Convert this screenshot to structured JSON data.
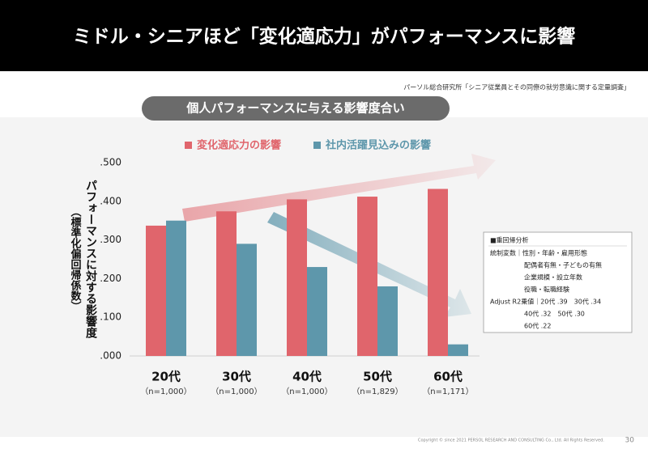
{
  "chart_data": {
    "type": "bar",
    "title": "ミドル・シニアほど「変化適応力」がパフォーマンスに影響",
    "source": "パーソル総合研究所「シニア従業員とその同僚の就労意識に関する定量調査」",
    "subtitle": "個人パフォーマンスに与える影響度合い",
    "y_label": "パフォーマンスに対する影響度",
    "y_label_note": "（標準化偏回帰係数）",
    "categories": [
      "20代",
      "30代",
      "40代",
      "50代",
      "60代"
    ],
    "category_notes": [
      "（n=1,000）",
      "（n=1,000）",
      "（n=1,000）",
      "（n=1,829）",
      "（n=1,171）"
    ],
    "series": [
      {
        "name": "変化適応力の影響",
        "color": "#e0656c",
        "values": [
          0.337,
          0.374,
          0.405,
          0.412,
          0.432
        ]
      },
      {
        "name": "社内活躍見込みの影響",
        "color": "#5e97ab",
        "values": [
          0.35,
          0.29,
          0.23,
          0.18,
          0.03
        ]
      }
    ],
    "ylim": [
      0,
      0.5
    ],
    "yticks": [
      {
        "value": 0,
        "label": ".000"
      },
      {
        "value": 0.1,
        "label": ".100"
      },
      {
        "value": 0.2,
        "label": ".200"
      },
      {
        "value": 0.3,
        "label": ".300"
      },
      {
        "value": 0.4,
        "label": ".400"
      },
      {
        "value": 0.5,
        "label": ".500"
      }
    ],
    "grid": false,
    "annotation_box": {
      "title": "■重回帰分析",
      "lines": [
        "統制変数｜性別・年齢・雇用形態",
        "配偶者有無・子どもの有無",
        "企業規模・設立年数",
        "役職・転職経験",
        "Adjust R2乗値｜20代 .39　30代 .34",
        "40代 .32　50代 .30",
        "60代 .22"
      ]
    },
    "copyright": "Copyright © since 2021 PERSOL RESEARCH AND CONSULTING Co., Ltd. All Rights Reserved.",
    "page_number": "30"
  }
}
